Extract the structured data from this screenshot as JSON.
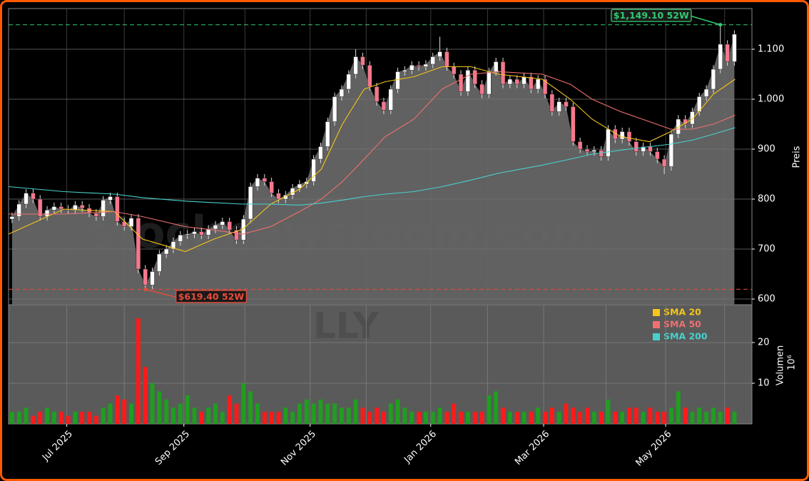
{
  "chart_data": [
    {
      "type": "candlestick",
      "watermark": "stocknewsroom.com",
      "ticker": "LLY",
      "y_label": "Preis",
      "x": [
        0,
        1,
        2,
        3,
        4,
        5,
        6,
        7,
        8,
        9,
        10,
        11,
        12,
        13,
        14,
        15,
        16,
        17,
        18,
        19,
        20,
        21,
        22,
        23,
        24,
        25,
        26,
        27,
        28,
        29,
        30,
        31,
        32,
        33,
        34,
        35,
        36,
        37,
        38,
        39,
        40,
        41,
        42,
        43,
        44,
        45,
        46,
        47,
        48,
        49,
        50,
        51,
        52,
        53,
        54,
        55,
        56,
        57,
        58,
        59,
        60,
        61,
        62,
        63,
        64,
        65,
        66,
        67,
        68,
        69,
        70,
        71,
        72,
        73,
        74,
        75,
        76,
        77,
        78,
        79,
        80,
        81,
        82,
        83,
        84,
        85,
        86,
        87,
        88,
        89,
        90,
        91,
        92,
        93,
        94,
        95,
        96,
        97,
        98,
        99,
        100,
        101,
        102,
        103
      ],
      "open": [
        760,
        765,
        790,
        812,
        800,
        765,
        778,
        785,
        780,
        778,
        788,
        782,
        772,
        765,
        798,
        805,
        755,
        745,
        762,
        660,
        628,
        655,
        690,
        700,
        715,
        728,
        730,
        735,
        728,
        740,
        748,
        755,
        738,
        718,
        760,
        825,
        842,
        835,
        812,
        800,
        808,
        822,
        830,
        835,
        880,
        905,
        955,
        1005,
        1020,
        1050,
        1085,
        1068,
        1025,
        995,
        978,
        1020,
        1055,
        1058,
        1068,
        1065,
        1070,
        1085,
        1095,
        1065,
        1050,
        1015,
        1058,
        1030,
        1010,
        1055,
        1075,
        1030,
        1040,
        1030,
        1045,
        1020,
        1040,
        1010,
        975,
        995,
        985,
        915,
        900,
        895,
        898,
        885,
        940,
        920,
        935,
        915,
        895,
        905,
        895,
        880,
        865,
        930,
        960,
        950,
        975,
        1005,
        1020,
        1060,
        1110,
        1075
      ],
      "high": [
        773,
        798,
        820,
        820,
        808,
        786,
        793,
        793,
        788,
        796,
        796,
        790,
        780,
        806,
        813,
        813,
        763,
        770,
        770,
        668,
        663,
        698,
        708,
        723,
        736,
        738,
        743,
        743,
        748,
        756,
        763,
        763,
        746,
        768,
        833,
        850,
        850,
        843,
        820,
        816,
        830,
        838,
        843,
        888,
        913,
        963,
        1013,
        1028,
        1058,
        1100,
        1093,
        1076,
        1033,
        1003,
        1028,
        1063,
        1066,
        1076,
        1076,
        1078,
        1093,
        1125,
        1103,
        1073,
        1058,
        1066,
        1066,
        1038,
        1063,
        1083,
        1083,
        1048,
        1048,
        1053,
        1053,
        1048,
        1048,
        1018,
        1003,
        1003,
        993,
        923,
        908,
        906,
        906,
        948,
        948,
        943,
        943,
        923,
        913,
        913,
        903,
        888,
        938,
        968,
        968,
        983,
        1013,
        1028,
        1068,
        1149.1,
        1118,
        1138
      ],
      "low": [
        752,
        757,
        782,
        792,
        757,
        757,
        770,
        772,
        770,
        770,
        774,
        764,
        757,
        757,
        790,
        747,
        737,
        737,
        652,
        619.4,
        620,
        647,
        682,
        692,
        707,
        720,
        722,
        720,
        720,
        732,
        740,
        730,
        710,
        710,
        752,
        817,
        827,
        804,
        792,
        792,
        800,
        814,
        822,
        827,
        872,
        897,
        947,
        997,
        1012,
        1042,
        1060,
        1017,
        987,
        970,
        970,
        1012,
        1047,
        1050,
        1057,
        1057,
        1062,
        1077,
        1057,
        1042,
        1007,
        1007,
        1022,
        1002,
        1002,
        1047,
        1022,
        1022,
        1022,
        1022,
        1012,
        1012,
        1002,
        967,
        967,
        977,
        907,
        892,
        887,
        887,
        877,
        877,
        912,
        912,
        907,
        887,
        887,
        887,
        872,
        850,
        857,
        922,
        942,
        942,
        967,
        997,
        1012,
        1052,
        1067,
        1067
      ],
      "close": [
        765,
        790,
        812,
        800,
        765,
        778,
        785,
        780,
        778,
        788,
        782,
        772,
        765,
        798,
        805,
        755,
        745,
        762,
        660,
        628,
        655,
        690,
        700,
        715,
        728,
        730,
        735,
        728,
        740,
        748,
        755,
        738,
        718,
        760,
        825,
        842,
        835,
        812,
        800,
        808,
        822,
        830,
        835,
        880,
        905,
        955,
        1005,
        1020,
        1050,
        1085,
        1068,
        1025,
        995,
        978,
        1020,
        1055,
        1058,
        1068,
        1065,
        1070,
        1085,
        1095,
        1065,
        1050,
        1015,
        1058,
        1030,
        1010,
        1055,
        1075,
        1030,
        1040,
        1030,
        1045,
        1020,
        1040,
        1010,
        975,
        995,
        985,
        915,
        900,
        895,
        898,
        885,
        940,
        920,
        935,
        915,
        895,
        905,
        895,
        880,
        865,
        930,
        960,
        950,
        975,
        1005,
        1020,
        1060,
        1110,
        1075,
        1130
      ],
      "up_color": "#ffffff",
      "down_color": "#f4788c",
      "area_color": "#666666",
      "xlim": [
        -0.5,
        105.5
      ],
      "ylim": [
        588.6,
        1181.4
      ],
      "yticks": [
        600,
        700,
        800,
        900,
        {
          "value": 1000,
          "label": "1.000"
        },
        {
          "value": 1100,
          "label": "1.100"
        }
      ],
      "xticks": [
        {
          "value": 7.8,
          "label": "Jul 2025"
        },
        {
          "value": 24.5,
          "label": "Sep 2025"
        },
        {
          "value": 42.5,
          "label": "Nov 2025"
        },
        {
          "value": 59.7,
          "label": "Jan 2026"
        },
        {
          "value": 75.8,
          "label": "Mar 2026"
        },
        {
          "value": 93.2,
          "label": "May 2026"
        }
      ],
      "xminorticks": [
        16.0,
        33.2,
        50.5,
        67.8,
        84.7,
        101.6
      ],
      "grid": true,
      "legend": "upper right",
      "lines": [
        {
          "name": "SMA 20",
          "color": "#f5c518",
          "x": [
            -0.5,
            7.4,
            14.6,
            18.6,
            24.7,
            28.8,
            32.9,
            36.9,
            41.0,
            44.1,
            47.1,
            50.2,
            53.2,
            57.3,
            61.3,
            65.4,
            69.4,
            75.6,
            79.6,
            82.7,
            86.8,
            90.9,
            93.9,
            97.0,
            100.0,
            103.1
          ],
          "values": [
            730,
            780,
            775,
            720,
            695,
            720,
            740,
            790,
            820,
            860,
            950,
            1020,
            1035,
            1045,
            1065,
            1065,
            1050,
            1040,
            1000,
            960,
            925,
            915,
            935,
            960,
            1010,
            1040
          ]
        },
        {
          "name": "SMA 50",
          "color": "#f07070",
          "x": [
            -0.5,
            7.4,
            14.6,
            18.6,
            24.7,
            28.8,
            32.9,
            36.9,
            41.0,
            44.1,
            47.1,
            50.2,
            53.2,
            57.3,
            61.3,
            65.4,
            69.4,
            75.6,
            79.6,
            82.7,
            86.8,
            90.9,
            93.9,
            97.0,
            100.0,
            103.1
          ],
          "values": [
            770,
            770,
            775,
            765,
            745,
            738,
            730,
            745,
            775,
            800,
            835,
            880,
            925,
            960,
            1020,
            1050,
            1055,
            1050,
            1030,
            1000,
            975,
            955,
            940,
            940,
            950,
            968
          ]
        },
        {
          "name": "SMA 200",
          "color": "#48d1cc",
          "x": [
            -0.5,
            7.4,
            14.6,
            18.6,
            24.7,
            28.8,
            32.9,
            36.9,
            41.0,
            44.1,
            47.1,
            50.2,
            53.2,
            57.3,
            61.3,
            65.4,
            69.4,
            75.6,
            79.6,
            82.7,
            86.8,
            90.9,
            93.9,
            97.0,
            100.0,
            103.1
          ],
          "values": [
            825,
            815,
            810,
            803,
            796,
            793,
            790,
            790,
            788,
            792,
            798,
            805,
            810,
            815,
            825,
            838,
            852,
            868,
            880,
            890,
            898,
            905,
            910,
            918,
            930,
            943
          ]
        }
      ],
      "annotations": [
        {
          "text": "$1,149.10 52W",
          "value": 1149.1,
          "x": 101,
          "color": "#2ecc71"
        },
        {
          "text": "$619.40 52W",
          "value": 619.4,
          "x": 19,
          "color": "#e74c3c"
        }
      ]
    },
    {
      "type": "bar",
      "y_label": "Volumen",
      "y_unit": "10⁶",
      "x": [
        0,
        1,
        2,
        3,
        4,
        5,
        6,
        7,
        8,
        9,
        10,
        11,
        12,
        13,
        14,
        15,
        16,
        17,
        18,
        19,
        20,
        21,
        22,
        23,
        24,
        25,
        26,
        27,
        28,
        29,
        30,
        31,
        32,
        33,
        34,
        35,
        36,
        37,
        38,
        39,
        40,
        41,
        42,
        43,
        44,
        45,
        46,
        47,
        48,
        49,
        50,
        51,
        52,
        53,
        54,
        55,
        56,
        57,
        58,
        59,
        60,
        61,
        62,
        63,
        64,
        65,
        66,
        67,
        68,
        69,
        70,
        71,
        72,
        73,
        74,
        75,
        76,
        77,
        78,
        79,
        80,
        81,
        82,
        83,
        84,
        85,
        86,
        87,
        88,
        89,
        90,
        91,
        92,
        93,
        94,
        95,
        96,
        97,
        98,
        99,
        100,
        101,
        102,
        103
      ],
      "values": [
        3,
        3,
        4,
        2,
        3,
        4,
        3,
        3,
        2,
        3,
        3,
        3,
        2,
        4,
        5,
        7,
        6,
        5,
        26,
        14,
        10,
        8,
        6,
        4,
        5,
        7,
        4,
        3,
        4,
        5,
        3,
        7,
        5,
        10,
        8,
        5,
        3,
        3,
        3,
        4,
        3,
        5,
        6,
        5,
        6,
        5,
        5,
        4,
        4,
        6,
        4,
        3,
        4,
        3,
        5,
        6,
        4,
        3,
        3,
        3,
        3,
        4,
        3,
        5,
        3,
        3,
        3,
        3,
        7,
        8,
        4,
        3,
        3,
        3,
        3,
        4,
        3,
        4,
        3,
        5,
        4,
        3,
        4,
        3,
        3,
        6,
        3,
        3,
        4,
        4,
        3,
        4,
        3,
        3,
        4,
        8,
        4,
        3,
        4,
        3,
        4,
        3,
        4,
        3
      ],
      "up_color": "#1f9e1f",
      "down_color": "#ff1a1a",
      "xlim": [
        -0.5,
        105.5
      ],
      "ylim": [
        0,
        29.3
      ],
      "yticks": [
        10,
        20
      ],
      "grid": true
    }
  ]
}
